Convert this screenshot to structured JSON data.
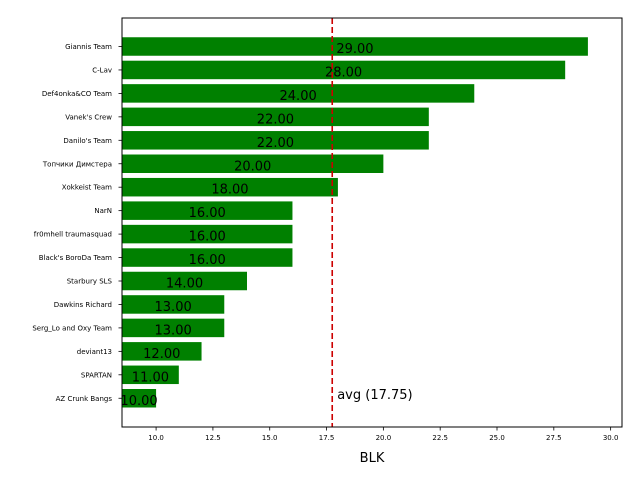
{
  "chart_data": {
    "type": "bar",
    "orientation": "horizontal",
    "categories": [
      "Giannis Team",
      "C-Lav",
      "Def4onka&CO Team",
      "Vanek's Crew",
      "Danilo's Team",
      "Топчики Димстера",
      "Xokkeist Team",
      "NarN",
      "fr0mhell traumasquad",
      "Black's BoroDa Team",
      "Starbury SLS",
      "Dawkins Richard",
      "Serg_Lo and Oxy Team",
      "deviant13",
      "SPARTAN",
      "AZ Crunk Bangs"
    ],
    "values": [
      29,
      28,
      24,
      22,
      22,
      20,
      18,
      16,
      16,
      16,
      14,
      13,
      13,
      12,
      11,
      10
    ],
    "value_labels": [
      "29.00",
      "28.00",
      "24.00",
      "22.00",
      "22.00",
      "20.00",
      "18.00",
      "16.00",
      "16.00",
      "16.00",
      "14.00",
      "13.00",
      "13.00",
      "12.00",
      "11.00",
      "10.00"
    ],
    "xlabel": "BLK",
    "xlim": [
      8.5,
      30.5
    ],
    "xticks": [
      10.0,
      12.5,
      15.0,
      17.5,
      20.0,
      22.5,
      25.0,
      27.5,
      30.0
    ],
    "xtick_labels": [
      "10.0",
      "12.5",
      "15.0",
      "17.5",
      "20.0",
      "22.5",
      "25.0",
      "27.5",
      "30.0"
    ],
    "bar_color": "#008000",
    "average": {
      "value": 17.75,
      "label": "avg (17.75)",
      "color": "#cc0000",
      "style": "dashed"
    },
    "grid": false,
    "legend": "none"
  }
}
